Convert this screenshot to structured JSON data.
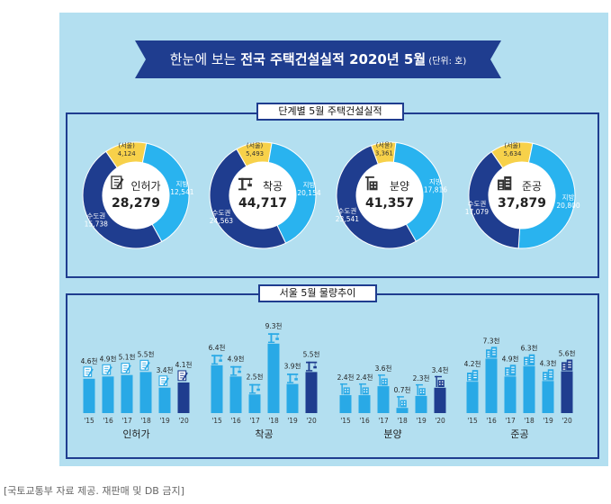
{
  "header": {
    "title_prefix": "한눈에 보는 ",
    "title_bold": "전국 주택건설실적 2020년 5월",
    "unit": " (단위: 호)"
  },
  "top_section_title": "단계별 5월 주택건설실적",
  "bottom_section_title": "서울 5월 물량추이",
  "footnote": "[국토교통부 자료 제공. 재판매 및 DB 금지]",
  "colors": {
    "seoul": "#f7d14a",
    "metro": "#1f3d8f",
    "region": "#29b3ef",
    "navy": "#1f3d8f",
    "cyan": "#29a9e6"
  },
  "icons": [
    "document-pen-icon",
    "crane-icon",
    "building-crane-icon",
    "building-icon"
  ],
  "chart_data": [
    {
      "type": "pie",
      "title": "단계별 5월 주택건설실적",
      "donuts": [
        {
          "name": "인허가",
          "total": "28,279",
          "icon": "document-pen-icon",
          "slices": [
            {
              "label": "(서울)",
              "value_text": "4,124",
              "value": 4124
            },
            {
              "label": "지방",
              "value_text": "12,541",
              "value": 12541
            },
            {
              "label": "수도권",
              "value_text": "15,738",
              "value": 15738
            }
          ]
        },
        {
          "name": "착공",
          "total": "44,717",
          "icon": "crane-icon",
          "slices": [
            {
              "label": "(서울)",
              "value_text": "5,493",
              "value": 5493
            },
            {
              "label": "지방",
              "value_text": "20,154",
              "value": 20154
            },
            {
              "label": "수도권",
              "value_text": "24,563",
              "value": 24563
            }
          ]
        },
        {
          "name": "분양",
          "total": "41,357",
          "icon": "building-crane-icon",
          "slices": [
            {
              "label": "(서울)",
              "value_text": "3,361",
              "value": 3361
            },
            {
              "label": "지방",
              "value_text": "17,816",
              "value": 17816
            },
            {
              "label": "수도권",
              "value_text": "23,541",
              "value": 23541
            }
          ]
        },
        {
          "name": "준공",
          "total": "37,879",
          "icon": "building-icon",
          "slices": [
            {
              "label": "(서울)",
              "value_text": "5,634",
              "value": 5634
            },
            {
              "label": "지방",
              "value_text": "20,800",
              "value": 20800
            },
            {
              "label": "수도권",
              "value_text": "17,079",
              "value": 17079
            }
          ]
        }
      ]
    },
    {
      "type": "bar",
      "title": "서울 5월 물량추이",
      "categories": [
        "'15",
        "'16",
        "'17",
        "'18",
        "'19",
        "'20"
      ],
      "groups": [
        {
          "name": "인허가",
          "icon": "document-pen-icon",
          "values": [
            4.6,
            4.9,
            5.1,
            5.5,
            3.4,
            4.1
          ],
          "labels": [
            "4.6천",
            "4.9천",
            "5.1천",
            "5.5천",
            "3.4천",
            "4.1천"
          ]
        },
        {
          "name": "착공",
          "icon": "crane-icon",
          "values": [
            6.4,
            4.9,
            2.5,
            9.3,
            3.9,
            5.5
          ],
          "labels": [
            "6.4천",
            "4.9천",
            "2.5천",
            "9.3천",
            "3.9천",
            "5.5천"
          ]
        },
        {
          "name": "분양",
          "icon": "building-crane-icon",
          "values": [
            2.4,
            2.4,
            3.6,
            0.7,
            2.3,
            3.4
          ],
          "labels": [
            "2.4천",
            "2.4천",
            "3.6천",
            "0.7천",
            "2.3천",
            "3.4천"
          ]
        },
        {
          "name": "준공",
          "icon": "building-icon",
          "values": [
            4.2,
            7.3,
            4.9,
            6.3,
            4.3,
            5.6
          ],
          "labels": [
            "4.2천",
            "7.3천",
            "4.9천",
            "6.3천",
            "4.3천",
            "5.6천"
          ]
        }
      ]
    }
  ]
}
